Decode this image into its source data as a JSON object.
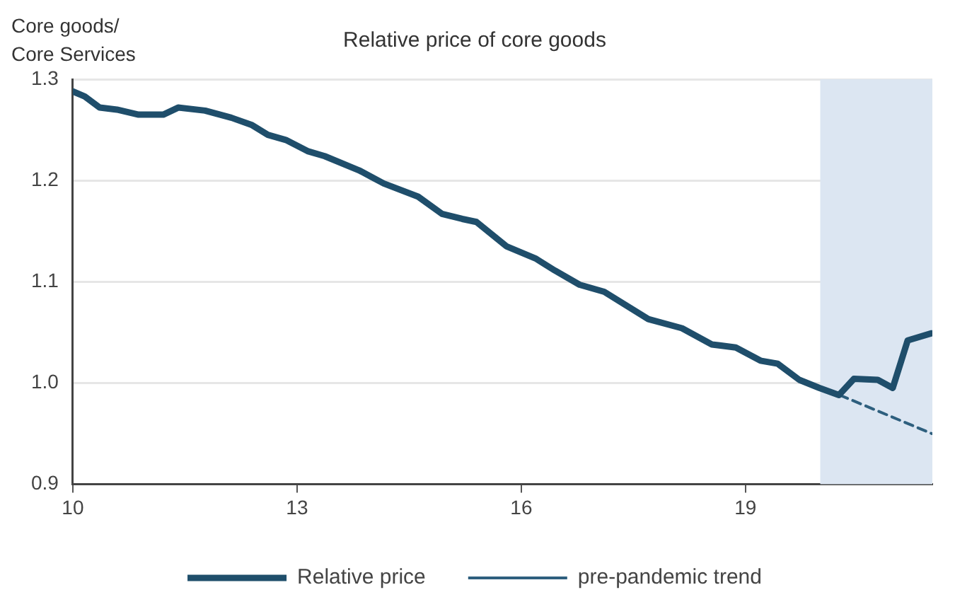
{
  "chart_data": {
    "type": "line",
    "title": "Relative price of core goods",
    "ylabel": "Core goods/ Core Services",
    "xlim": [
      10,
      21.5
    ],
    "xticks": [
      10,
      13,
      16,
      19
    ],
    "ylim": [
      0.9,
      1.3
    ],
    "yticks": [
      0.9,
      {
        "value": 1,
        "label": "1.0"
      },
      1.1,
      1.2,
      1.3
    ],
    "grid": "y",
    "legend": "bottom",
    "bands": [
      {
        "axis": "x",
        "from": 20.0,
        "to": 21.5,
        "color": "#dce6f2"
      }
    ],
    "series": [
      {
        "name": "Relative price",
        "color": "#1f4e6b",
        "line_style": "solid",
        "x": [
          10,
          10.16,
          10.36,
          10.59,
          10.88,
          11.21,
          11.41,
          11.77,
          12.12,
          12.39,
          12.61,
          12.85,
          13.14,
          13.37,
          13.83,
          14.16,
          14.62,
          14.94,
          15.21,
          15.4,
          15.8,
          16.19,
          16.45,
          16.78,
          17.11,
          17.7,
          18.15,
          18.55,
          18.87,
          19.2,
          19.43,
          19.72,
          19.99,
          20.25,
          20.45,
          20.77,
          20.97,
          21.17,
          21.49
        ],
        "values": [
          1.288,
          1.283,
          1.272,
          1.27,
          1.265,
          1.265,
          1.272,
          1.269,
          1.262,
          1.255,
          1.245,
          1.24,
          1.229,
          1.224,
          1.21,
          1.197,
          1.184,
          1.167,
          1.162,
          1.159,
          1.135,
          1.123,
          1.111,
          1.097,
          1.09,
          1.063,
          1.054,
          1.038,
          1.035,
          1.022,
          1.019,
          1.003,
          0.995,
          0.988,
          1.004,
          1.003,
          0.995,
          1.042,
          1.049
        ]
      },
      {
        "name": "pre-pandemic trend",
        "color": "#2e5f7e",
        "line_style": "dashed",
        "x": [
          20.26,
          21.49
        ],
        "values": [
          0.988,
          0.95
        ]
      }
    ]
  }
}
